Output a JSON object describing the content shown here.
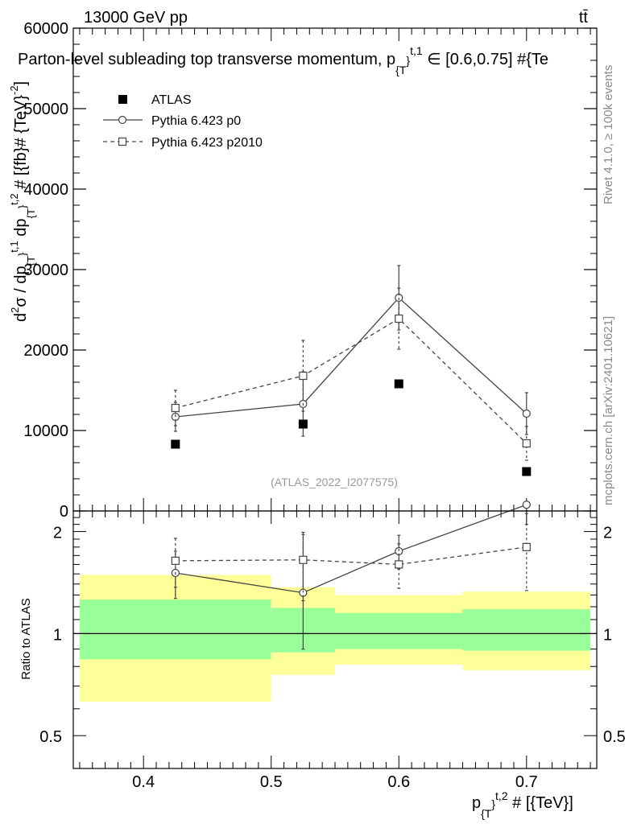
{
  "header": {
    "energy_label": "13000 GeV pp",
    "process_label": "tt̄"
  },
  "side_labels": {
    "rivet": "Rivet 4.1.0, ≥ 100k events",
    "mcplots": "mcplots.cern.ch [arXiv:2401.10621]"
  },
  "chart_data": [
    {
      "type": "scatter",
      "panel": "main",
      "title_parts": {
        "prefix": "Parton-level subleading top transverse momentum, p",
        "sub": "{T",
        "sup": "}",
        "sup2": "t,1",
        "range": " ∈ [0.6,0.75] #{Te"
      },
      "ylabel_parts": {
        "d2": "d",
        "two": "2",
        "sigma": "σ / dp",
        "sub1": "{T",
        "sup1": "}",
        "sup1b": "t,1",
        "dp": " dp",
        "sub2": "{T",
        "sup2": "}",
        "sup2b": "t,2",
        "unit": " # [{fb}# {TeV}",
        "unit_sup": "-2",
        "close": "]"
      },
      "watermark": "(ATLAS_2022_I2077575)",
      "ylim": [
        0,
        60000
      ],
      "y_ticks": [
        0,
        10000,
        20000,
        30000,
        40000,
        50000,
        60000
      ],
      "y_tick_labels": [
        "0",
        "10000",
        "20000",
        "30000",
        "40000",
        "50000",
        "60000"
      ],
      "x": [
        0.425,
        0.525,
        0.6,
        0.7
      ],
      "series": [
        {
          "name": "ATLAS",
          "style": "filled-square",
          "values": [
            8300,
            10800,
            15800,
            4900
          ]
        },
        {
          "name": "Pythia 6.423 p0",
          "style": "open-circle-solid",
          "values": [
            11700,
            13300,
            26500,
            12100
          ],
          "err_low": [
            1800,
            4000,
            4000,
            2600
          ],
          "err_high": [
            1800,
            4000,
            4000,
            2600
          ]
        },
        {
          "name": "Pythia 6.423 p2010",
          "style": "open-square-dashed",
          "values": [
            12800,
            16800,
            23900,
            8400
          ],
          "err_low": [
            2200,
            4400,
            3800,
            2100
          ],
          "err_high": [
            2200,
            4400,
            3800,
            2100
          ]
        }
      ]
    },
    {
      "type": "ratio",
      "panel": "ratio",
      "ylabel": "Ratio to ATLAS",
      "ylim": [
        0.4,
        2.3
      ],
      "y_tick_labels": [
        "0.5",
        "1",
        "2"
      ],
      "y_ticks": [
        0.5,
        1,
        2
      ],
      "xlim": [
        0.345,
        0.755
      ],
      "x_ticks": [
        0.4,
        0.5,
        0.6,
        0.7
      ],
      "x_tick_labels": [
        "0.4",
        "0.5",
        "0.6",
        "0.7"
      ],
      "xlabel_parts": {
        "p": "p",
        "sub": "{T",
        "sup": "}",
        "sup2": "t,2",
        "unit": " # [{TeV}]"
      },
      "bands": [
        {
          "x0": 0.35,
          "x1": 0.5,
          "green_lo": 0.84,
          "green_hi": 1.26,
          "yellow_lo": 0.63,
          "yellow_hi": 1.49
        },
        {
          "x0": 0.5,
          "x1": 0.55,
          "green_lo": 0.88,
          "green_hi": 1.19,
          "yellow_lo": 0.755,
          "yellow_hi": 1.37
        },
        {
          "x0": 0.55,
          "x1": 0.65,
          "green_lo": 0.9,
          "green_hi": 1.15,
          "yellow_lo": 0.81,
          "yellow_hi": 1.3
        },
        {
          "x0": 0.65,
          "x1": 0.75,
          "green_lo": 0.89,
          "green_hi": 1.18,
          "yellow_lo": 0.78,
          "yellow_hi": 1.33
        }
      ],
      "series": [
        {
          "name": "Pythia 6.423 p0",
          "style": "open-circle-solid",
          "values": [
            1.51,
            1.32,
            1.75,
            2.4
          ],
          "err_low": [
            0.24,
            0.42,
            0.2,
            0.3
          ],
          "err_high": [
            0.24,
            0.64,
            0.2,
            0.3
          ]
        },
        {
          "name": "Pythia 6.423 p2010",
          "style": "open-square-dashed",
          "values": [
            1.64,
            1.65,
            1.6,
            1.8
          ],
          "err_low": [
            0.27,
            0.4,
            0.24,
            0.46
          ],
          "err_high": [
            0.27,
            0.34,
            0.24,
            0.46
          ]
        }
      ]
    }
  ]
}
